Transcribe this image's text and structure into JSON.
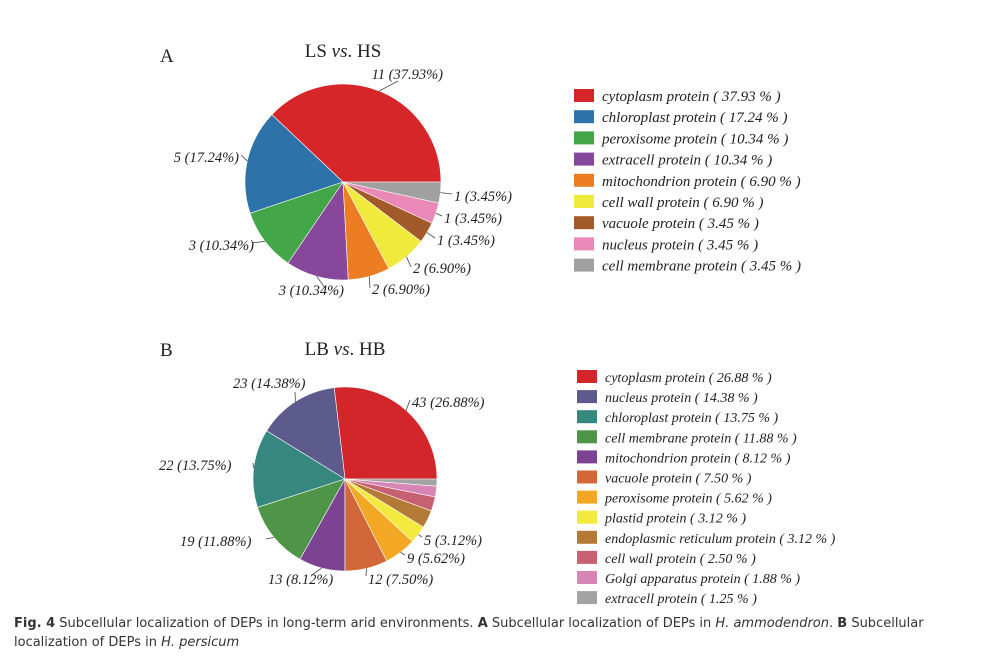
{
  "chart_data": [
    {
      "type": "pie",
      "panel": "A",
      "title_parts": [
        "LS ",
        "vs",
        ". HS"
      ],
      "slices": [
        {
          "name": "cytoplasm protein",
          "value": 11,
          "label": "11 (37.93%)",
          "legend": "cytoplasm protein  ( 37.93 % )",
          "color": "#d7262a"
        },
        {
          "name": "chloroplast protein",
          "value": 5,
          "label": "5 (17.24%)",
          "legend": "chloroplast protein  ( 17.24 % )",
          "color": "#2d73aa"
        },
        {
          "name": "peroxisome protein",
          "value": 3,
          "label": "3 (10.34%)",
          "legend": "peroxisome protein  ( 10.34 % )",
          "color": "#43a648"
        },
        {
          "name": "extracell protein",
          "value": 3,
          "label": "3 (10.34%)",
          "legend": "extracell protein  ( 10.34 % )",
          "color": "#87479a"
        },
        {
          "name": "mitochondrion protein",
          "value": 2,
          "label": "2 (6.90%)",
          "legend": "mitochondrion protein  ( 6.90 % )",
          "color": "#ec7d23"
        },
        {
          "name": "cell wall protein",
          "value": 2,
          "label": "2 (6.90%)",
          "legend": "cell wall protein  ( 6.90 % )",
          "color": "#f0ea3c"
        },
        {
          "name": "vacuole protein",
          "value": 1,
          "label": "1 (3.45%)",
          "legend": "vacuole protein  ( 3.45 % )",
          "color": "#a35a2b"
        },
        {
          "name": "nucleus protein",
          "value": 1,
          "label": "1 (3.45%)",
          "legend": "nucleus protein  ( 3.45 % )",
          "color": "#ea88b8"
        },
        {
          "name": "cell membrane protein",
          "value": 1,
          "label": "1 (3.45%)",
          "legend": "cell membrane protein  ( 3.45 % )",
          "color": "#a0a0a0"
        }
      ]
    },
    {
      "type": "pie",
      "panel": "B",
      "title_parts": [
        "LB ",
        "vs",
        ". HB"
      ],
      "slices": [
        {
          "name": "cytoplasm protein",
          "value": 43,
          "label": "43 (26.88%)",
          "legend": "cytoplasm protein  ( 26.88 % )",
          "color": "#d3262b"
        },
        {
          "name": "nucleus protein",
          "value": 23,
          "label": "23 (14.38%)",
          "legend": "nucleus protein  ( 14.38 % )",
          "color": "#5d5a8c"
        },
        {
          "name": "chloroplast protein",
          "value": 22,
          "label": "22 (13.75%)",
          "legend": "chloroplast protein  ( 13.75 % )",
          "color": "#35877f"
        },
        {
          "name": "cell membrane protein",
          "value": 19,
          "label": "19 (11.88%)",
          "legend": "cell membrane protein  ( 11.88 % )",
          "color": "#4e9548"
        },
        {
          "name": "mitochondrion protein",
          "value": 13,
          "label": "13 (8.12%)",
          "legend": "mitochondrion protein  ( 8.12 % )",
          "color": "#7c4392"
        },
        {
          "name": "vacuole protein",
          "value": 12,
          "label": "12 (7.50%)",
          "legend": "vacuole protein  ( 7.50 % )",
          "color": "#d2683a"
        },
        {
          "name": "peroxisome protein",
          "value": 9,
          "label": "9 (5.62%)",
          "legend": "peroxisome protein  ( 5.62 % )",
          "color": "#f2a825"
        },
        {
          "name": "plastid protein",
          "value": 5,
          "label": "5 (3.12%)",
          "legend": "plastid protein  ( 3.12 % )",
          "color": "#f4ea3e"
        },
        {
          "name": "endoplasmic reticulum protein",
          "value": 5,
          "label": "",
          "legend": "endoplasmic reticulum protein  ( 3.12 % )",
          "color": "#b27a35"
        },
        {
          "name": "cell wall protein",
          "value": 4,
          "label": "",
          "legend": "cell wall protein  ( 2.50 % )",
          "color": "#c76070"
        },
        {
          "name": "Golgi apparatus protein",
          "value": 3,
          "label": "",
          "legend": "Golgi apparatus protein  ( 1.88 % )",
          "color": "#d685b5"
        },
        {
          "name": "extracell protein",
          "value": 2,
          "label": "",
          "legend": "extracell protein  ( 1.25 % )",
          "color": "#a3a3a3"
        }
      ]
    }
  ],
  "caption": {
    "fig": "Fig. 4",
    "text1": "  Subcellular localization of DEPs in long-term arid environments. ",
    "a": "A",
    "text2": " Subcellular localization of DEPs in ",
    "species_a": "H. ammodendron",
    "text3": ". ",
    "b": "B",
    "text4": " Subcellular localization of DEPs in ",
    "species_b": "H. persicum"
  }
}
